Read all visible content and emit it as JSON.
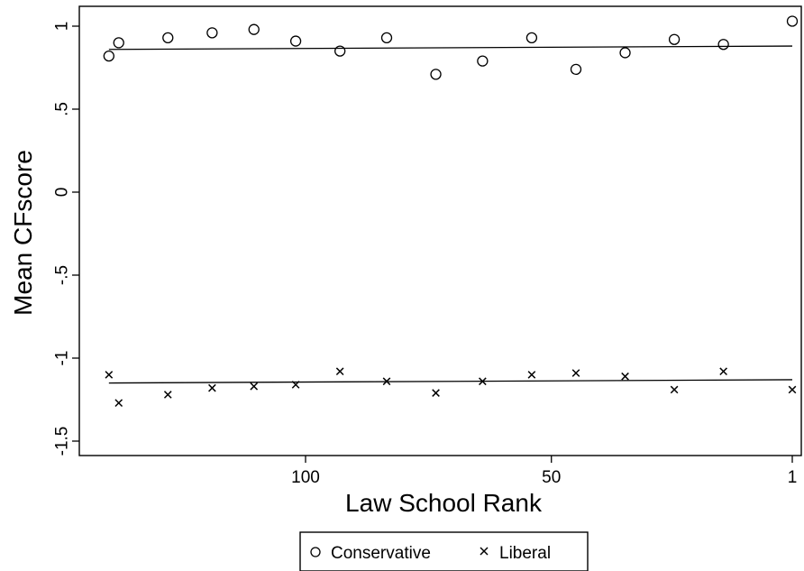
{
  "chart_data": {
    "type": "scatter",
    "xlabel": "Law School Rank",
    "ylabel": "Mean CFscore",
    "x_reversed": true,
    "xlim": [
      142,
      0
    ],
    "ylim": [
      -1.5,
      1
    ],
    "x_ticks": [
      {
        "value": 100,
        "label": "100"
      },
      {
        "value": 50,
        "label": "50"
      },
      {
        "value": 1,
        "label": "1"
      }
    ],
    "y_ticks": [
      {
        "value": 1,
        "label": "1"
      },
      {
        "value": 0.5,
        "label": ".5"
      },
      {
        "value": 0,
        "label": "0"
      },
      {
        "value": -0.5,
        "label": "-.5"
      },
      {
        "value": -1,
        "label": "-1"
      },
      {
        "value": -1.5,
        "label": "-1.5"
      }
    ],
    "grid": false,
    "legend_position": "bottom",
    "series": [
      {
        "name": "Conservative",
        "marker": "circle",
        "x": [
          140,
          138,
          128,
          119,
          110.5,
          102,
          93,
          83.5,
          73.5,
          64,
          54,
          45,
          35,
          25,
          15,
          1
        ],
        "y": [
          0.82,
          0.9,
          0.93,
          0.96,
          0.98,
          0.91,
          0.85,
          0.93,
          0.71,
          0.79,
          0.93,
          0.74,
          0.84,
          0.92,
          0.89,
          1.03
        ],
        "fit": {
          "x": [
            140,
            1
          ],
          "y": [
            0.86,
            0.88
          ]
        }
      },
      {
        "name": "Liberal",
        "marker": "x",
        "x": [
          140,
          138,
          128,
          119,
          110.5,
          102,
          93,
          83.5,
          73.5,
          64,
          54,
          45,
          35,
          25,
          15,
          1
        ],
        "y": [
          -1.1,
          -1.27,
          -1.22,
          -1.18,
          -1.17,
          -1.16,
          -1.08,
          -1.14,
          -1.21,
          -1.14,
          -1.1,
          -1.09,
          -1.11,
          -1.19,
          -1.08,
          -1.19
        ],
        "fit": {
          "x": [
            140,
            1
          ],
          "y": [
            -1.15,
            -1.13
          ]
        }
      }
    ]
  }
}
